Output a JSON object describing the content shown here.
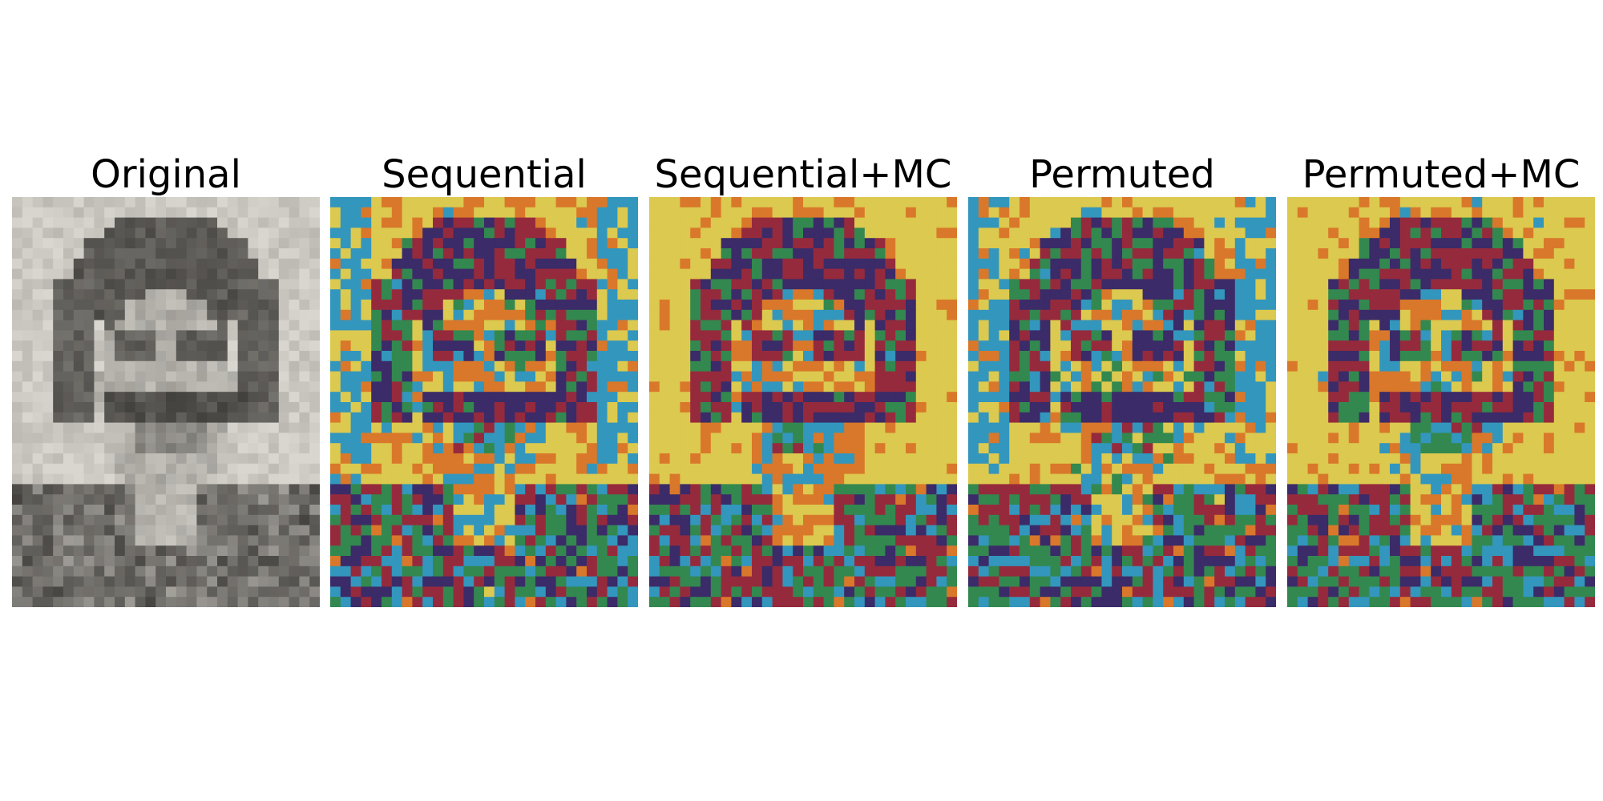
{
  "panels": [
    {
      "title": "Original"
    },
    {
      "title": "Sequential"
    },
    {
      "title": "Sequential+MC"
    },
    {
      "title": "Permuted"
    },
    {
      "title": "Permuted+MC"
    }
  ],
  "grid": {
    "columns": 30,
    "rows": 40
  },
  "palette": {
    "grayscale_light": "#d9d6cf",
    "grayscale_dark": "#3c3a37",
    "yellow": "#dcc94f",
    "purple": "#3b2b68",
    "green": "#33884f",
    "orange": "#d9782a",
    "crimson": "#962a3d",
    "teal": "#3396bd"
  }
}
